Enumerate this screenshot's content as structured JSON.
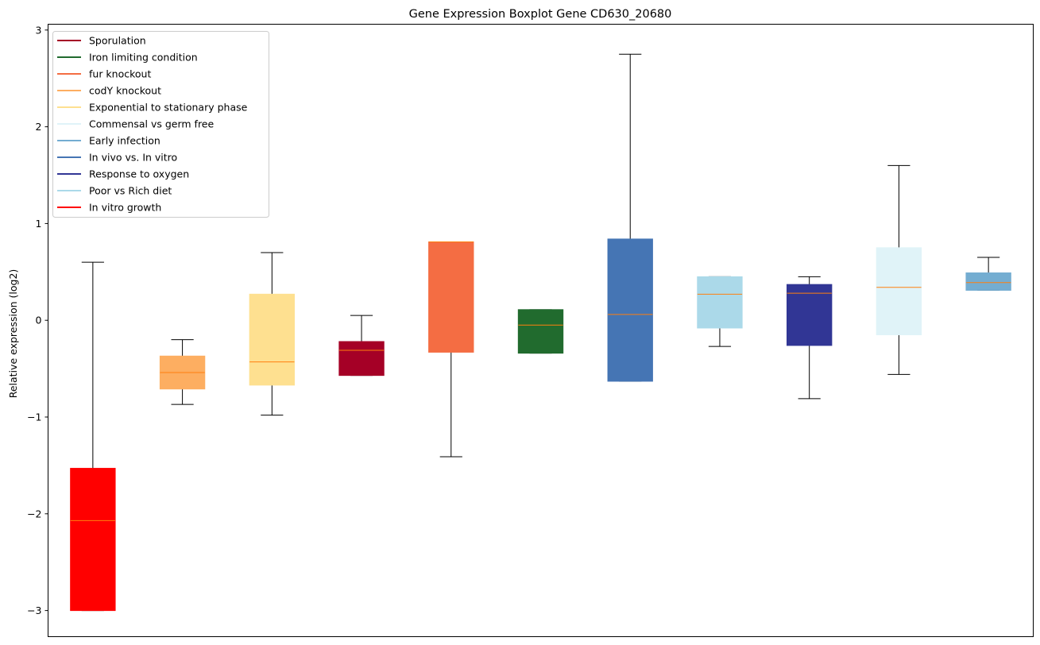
{
  "chart_data": {
    "type": "boxplot",
    "title": "Gene Expression Boxplot Gene CD630_20680",
    "xlabel": "",
    "ylabel": "Relative expression (log2)",
    "ylim": [
      -3.27,
      3.06
    ],
    "yticks": [
      3,
      2,
      1,
      0,
      -1,
      -2,
      -3
    ],
    "ytick_labels": [
      "3",
      "2",
      "1",
      "0",
      "−1",
      "−2",
      "−3"
    ],
    "median_color": "#ff7f0e",
    "legend_position": "upper-left",
    "legend": [
      {
        "label": "Sporulation",
        "color": "#a50026"
      },
      {
        "label": "Iron limiting condition",
        "color": "#216b2e"
      },
      {
        "label": "fur knockout",
        "color": "#f46d43"
      },
      {
        "label": "codY knockout",
        "color": "#fdae61"
      },
      {
        "label": "Exponential to stationary phase",
        "color": "#fee090"
      },
      {
        "label": "Commensal vs germ free",
        "color": "#e0f3f8"
      },
      {
        "label": "Early infection",
        "color": "#74add1"
      },
      {
        "label": "In vivo vs. In vitro",
        "color": "#4575b4"
      },
      {
        "label": "Response to oxygen",
        "color": "#313695"
      },
      {
        "label": "Poor vs Rich diet",
        "color": "#abd9e9"
      },
      {
        "label": "In vitro growth",
        "color": "#ff0000"
      }
    ],
    "series": [
      {
        "name": "In vitro growth",
        "color": "#ff0000",
        "whisker_low": -3.0,
        "q1": -3.0,
        "median": -2.07,
        "q3": -1.53,
        "whisker_high": 0.6
      },
      {
        "name": "codY knockout",
        "color": "#fdae61",
        "whisker_low": -0.87,
        "q1": -0.71,
        "median": -0.54,
        "q3": -0.37,
        "whisker_high": -0.2
      },
      {
        "name": "Exponential to stationary phase",
        "color": "#fee090",
        "whisker_low": -0.98,
        "q1": -0.67,
        "median": -0.43,
        "q3": 0.27,
        "whisker_high": 0.7
      },
      {
        "name": "Sporulation",
        "color": "#a50026",
        "whisker_low": -0.57,
        "q1": -0.57,
        "median": -0.31,
        "q3": -0.22,
        "whisker_high": 0.05
      },
      {
        "name": "fur knockout",
        "color": "#f46d43",
        "whisker_low": -1.41,
        "q1": -0.33,
        "median": 0.81,
        "q3": 0.81,
        "whisker_high": 0.81
      },
      {
        "name": "Iron limiting condition",
        "color": "#216b2e",
        "whisker_low": -0.34,
        "q1": -0.34,
        "median": -0.05,
        "q3": 0.11,
        "whisker_high": 0.11
      },
      {
        "name": "In vivo vs. In vitro",
        "color": "#4575b4",
        "whisker_low": -0.63,
        "q1": -0.63,
        "median": 0.06,
        "q3": 0.84,
        "whisker_high": 2.75
      },
      {
        "name": "Poor vs Rich diet",
        "color": "#abd9e9",
        "whisker_low": -0.27,
        "q1": -0.08,
        "median": 0.27,
        "q3": 0.45,
        "whisker_high": 0.45
      },
      {
        "name": "Response to oxygen",
        "color": "#313695",
        "whisker_low": -0.81,
        "q1": -0.26,
        "median": 0.28,
        "q3": 0.37,
        "whisker_high": 0.45
      },
      {
        "name": "Commensal vs germ free",
        "color": "#e0f3f8",
        "whisker_low": -0.56,
        "q1": -0.15,
        "median": 0.34,
        "q3": 0.75,
        "whisker_high": 1.6
      },
      {
        "name": "Early infection",
        "color": "#74add1",
        "whisker_low": 0.31,
        "q1": 0.31,
        "median": 0.39,
        "q3": 0.49,
        "whisker_high": 0.65
      }
    ]
  }
}
